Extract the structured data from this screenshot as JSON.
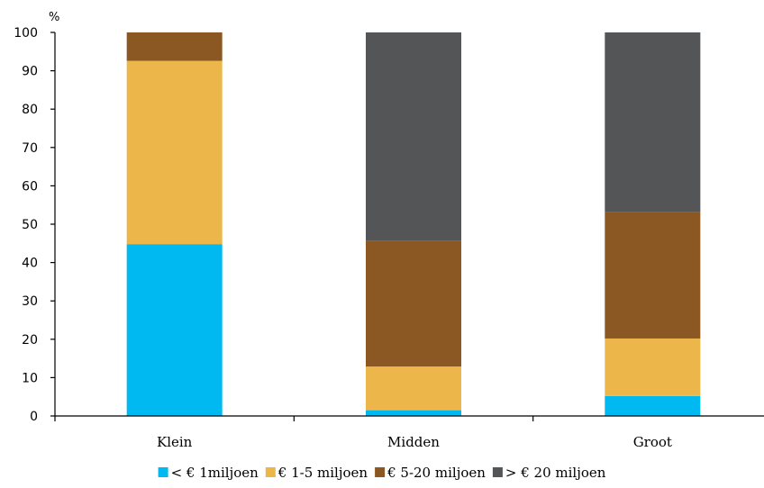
{
  "chart_data": {
    "type": "bar",
    "stacked": true,
    "unit_label": "%",
    "ylim": [
      0,
      100
    ],
    "y_ticks": [
      "0",
      "10",
      "20",
      "30",
      "40",
      "50",
      "60",
      "70",
      "80",
      "90",
      "100"
    ],
    "categories": [
      "Klein",
      "Midden",
      "Groot"
    ],
    "series": [
      {
        "name": "< € 1miljoen",
        "color": "#00B9F0",
        "values": [
          44.8,
          1.5,
          5.2
        ]
      },
      {
        "name": "€ 1-5 miljoen",
        "color": "#ECB64A",
        "values": [
          47.8,
          11.4,
          15.0
        ]
      },
      {
        "name": "€ 5-20 miljoen",
        "color": "#8B5723",
        "values": [
          7.4,
          32.8,
          33.0
        ]
      },
      {
        "name": "> € 20 miljoen",
        "color": "#545556",
        "values": [
          0.0,
          54.3,
          46.8
        ]
      }
    ],
    "grid": false,
    "legend_position": "bottom"
  }
}
